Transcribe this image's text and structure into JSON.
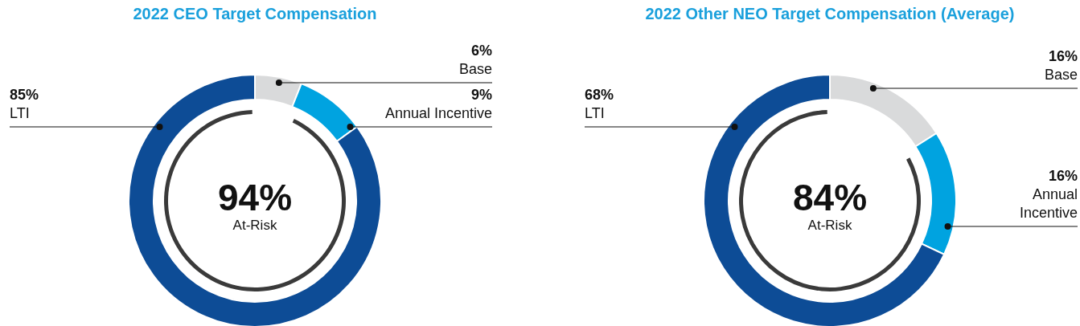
{
  "chart_data": [
    {
      "type": "donut",
      "title": "2022 CEO Target Compensation",
      "categories": [
        "Base",
        "Annual Incentive",
        "LTI"
      ],
      "values": [
        6,
        9,
        85
      ],
      "value_labels": [
        "6%",
        "9%",
        "85%"
      ],
      "colors": [
        "#d9dadb",
        "#00a3e0",
        "#0d4c96"
      ],
      "annotations": [
        "94%",
        "At-Risk"
      ]
    },
    {
      "type": "donut",
      "title": "2022 Other NEO Target Compensation (Average)",
      "categories": [
        "Base",
        "Annual Incentive",
        "LTI"
      ],
      "values": [
        16,
        16,
        68
      ],
      "value_labels": [
        "16%",
        "16%",
        "68%"
      ],
      "colors": [
        "#d9dadb",
        "#00a3e0",
        "#0d4c96"
      ],
      "annotations": [
        "84%",
        "At-Risk"
      ]
    }
  ]
}
